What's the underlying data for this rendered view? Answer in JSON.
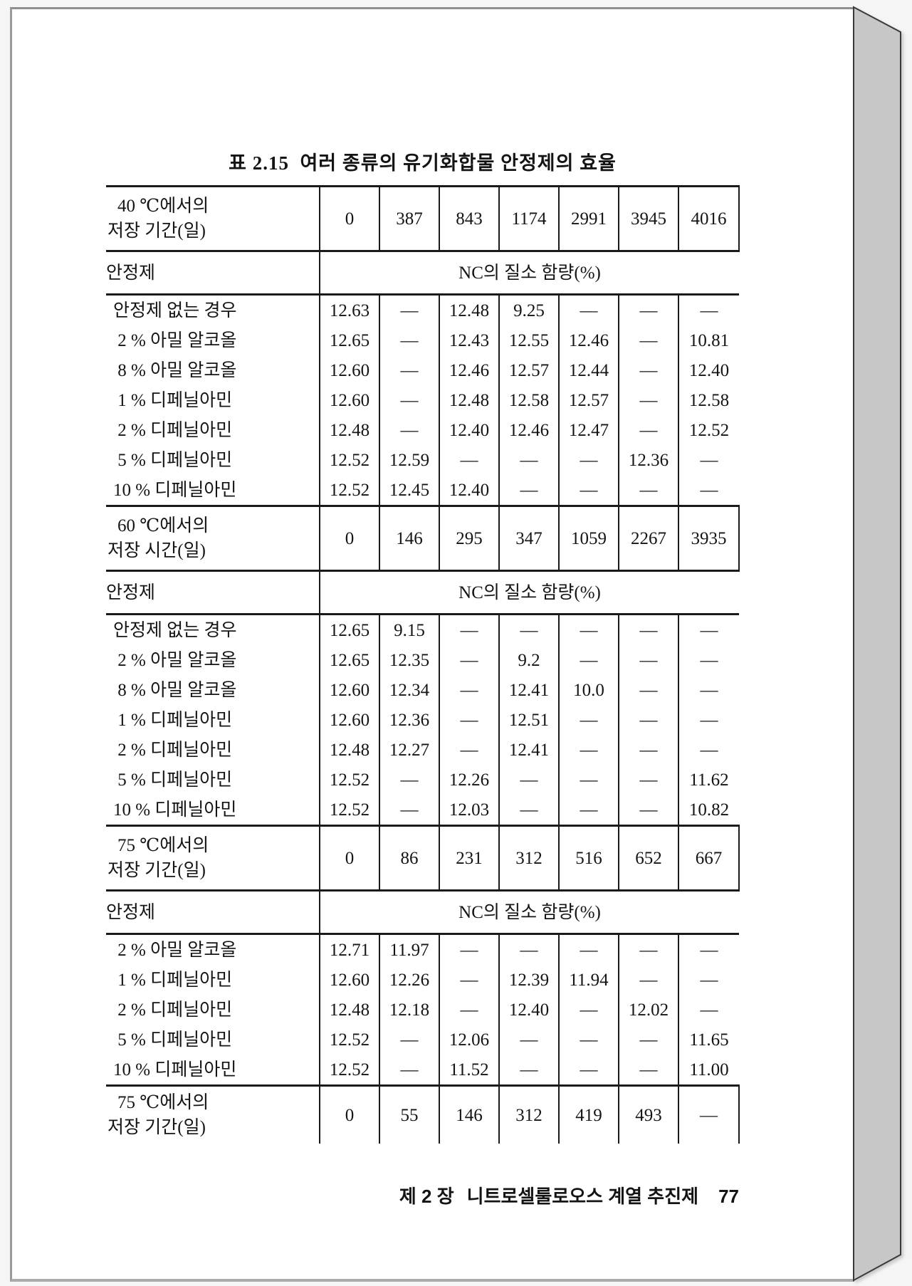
{
  "colors": {
    "ink": "#141414",
    "paper": "#ffffff",
    "page_edge": "#c7c7c7",
    "backdrop": "#f5f5f6"
  },
  "page": {
    "title": "표 2.15  여러 종류의 유기화합물 안정제의 효율",
    "footer": {
      "chapter": "제 2 장",
      "chapter_title": "니트로셀룰로오스 계열 추진제",
      "page_number": "77"
    }
  },
  "table": {
    "stabilizer_header": "안정제",
    "nc_header": "NC의 질소 함량(%)",
    "sections": [
      {
        "period_label_line1": "40 ℃에서의",
        "period_label_line2": "저장 기간(일)",
        "periods": [
          "0",
          "387",
          "843",
          "1174",
          "2991",
          "3945",
          "4016"
        ],
        "rows": [
          {
            "label": "안정제 없는 경우",
            "values": [
              "12.63",
              "—",
              "12.48",
              "9.25",
              "—",
              "—",
              "—"
            ]
          },
          {
            "label": " 2 % 아밀 알코올",
            "values": [
              "12.65",
              "—",
              "12.43",
              "12.55",
              "12.46",
              "—",
              "10.81"
            ]
          },
          {
            "label": " 8 % 아밀 알코올",
            "values": [
              "12.60",
              "—",
              "12.46",
              "12.57",
              "12.44",
              "—",
              "12.40"
            ]
          },
          {
            "label": " 1 % 디페닐아민",
            "values": [
              "12.60",
              "—",
              "12.48",
              "12.58",
              "12.57",
              "—",
              "12.58"
            ]
          },
          {
            "label": " 2 % 디페닐아민",
            "values": [
              "12.48",
              "—",
              "12.40",
              "12.46",
              "12.47",
              "—",
              "12.52"
            ]
          },
          {
            "label": " 5 % 디페닐아민",
            "values": [
              "12.52",
              "12.59",
              "—",
              "—",
              "—",
              "12.36",
              "—"
            ]
          },
          {
            "label": "10 % 디페닐아민",
            "values": [
              "12.52",
              "12.45",
              "12.40",
              "—",
              "—",
              "—",
              "—"
            ]
          }
        ]
      },
      {
        "period_label_line1": "60 ℃에서의",
        "period_label_line2": "저장 시간(일)",
        "periods": [
          "0",
          "146",
          "295",
          "347",
          "1059",
          "2267",
          "3935"
        ],
        "rows": [
          {
            "label": "안정제 없는 경우",
            "values": [
              "12.65",
              "9.15",
              "—",
              "—",
              "—",
              "—",
              "—"
            ]
          },
          {
            "label": " 2 % 아밀 알코올",
            "values": [
              "12.65",
              "12.35",
              "—",
              "9.2",
              "—",
              "—",
              "—"
            ]
          },
          {
            "label": " 8 % 아밀 알코올",
            "values": [
              "12.60",
              "12.34",
              "—",
              "12.41",
              "10.0",
              "—",
              "—"
            ]
          },
          {
            "label": " 1 % 디페닐아민",
            "values": [
              "12.60",
              "12.36",
              "—",
              "12.51",
              "—",
              "—",
              "—"
            ]
          },
          {
            "label": " 2 % 디페닐아민",
            "values": [
              "12.48",
              "12.27",
              "—",
              "12.41",
              "—",
              "—",
              "—"
            ]
          },
          {
            "label": " 5 % 디페닐아민",
            "values": [
              "12.52",
              "—",
              "12.26",
              "—",
              "—",
              "—",
              "11.62"
            ]
          },
          {
            "label": "10 % 디페닐아민",
            "values": [
              "12.52",
              "—",
              "12.03",
              "—",
              "—",
              "—",
              "10.82"
            ]
          }
        ]
      },
      {
        "period_label_line1": "75 ℃에서의",
        "period_label_line2": "저장 기간(일)",
        "periods": [
          "0",
          "86",
          "231",
          "312",
          "516",
          "652",
          "667"
        ],
        "rows": [
          {
            "label": " 2 % 아밀 알코올",
            "values": [
              "12.71",
              "11.97",
              "—",
              "—",
              "—",
              "—",
              "—"
            ]
          },
          {
            "label": " 1 % 디페닐아민",
            "values": [
              "12.60",
              "12.26",
              "—",
              "12.39",
              "11.94",
              "—",
              "—"
            ]
          },
          {
            "label": " 2 % 디페닐아민",
            "values": [
              "12.48",
              "12.18",
              "—",
              "12.40",
              "—",
              "12.02",
              "—"
            ]
          },
          {
            "label": " 5 % 디페닐아민",
            "values": [
              "12.52",
              "—",
              "12.06",
              "—",
              "—",
              "—",
              "11.65"
            ]
          },
          {
            "label": "10 % 디페닐아민",
            "values": [
              "12.52",
              "—",
              "11.52",
              "—",
              "—",
              "—",
              "11.00"
            ]
          }
        ]
      }
    ],
    "closing_row": {
      "period_label_line1": "75 ℃에서의",
      "period_label_line2": "저장 기간(일)",
      "periods": [
        "0",
        "55",
        "146",
        "312",
        "419",
        "493",
        "—"
      ]
    }
  }
}
